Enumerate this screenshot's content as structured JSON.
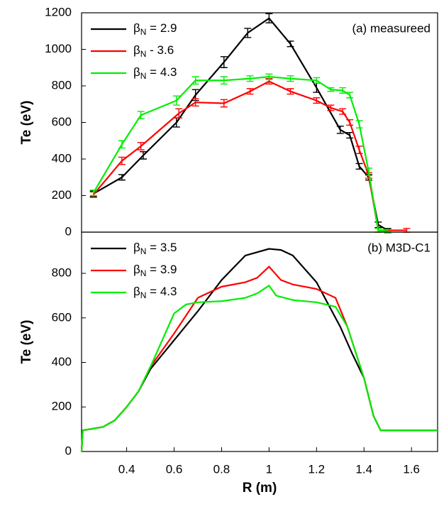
{
  "chart_data": [
    {
      "type": "line",
      "title": "(a) measureed",
      "y_label": "Te (eV)",
      "xlim": [
        0.21,
        1.71
      ],
      "ylim": [
        0,
        1200
      ],
      "yticks": [
        0,
        200,
        400,
        600,
        800,
        1000,
        1200
      ],
      "series": [
        {
          "name": "βN = 2.9",
          "color": "#000000",
          "x": [
            0.26,
            0.38,
            0.47,
            0.61,
            0.69,
            0.81,
            0.91,
            1.0,
            1.09,
            1.2,
            1.3,
            1.34,
            1.38,
            1.42,
            1.46,
            1.5
          ],
          "values": [
            210,
            300,
            420,
            600,
            750,
            930,
            1090,
            1170,
            1030,
            790,
            560,
            530,
            360,
            300,
            40,
            10
          ],
          "errors": [
            15,
            15,
            20,
            25,
            30,
            30,
            25,
            25,
            15,
            25,
            20,
            15,
            15,
            15,
            15,
            10
          ]
        },
        {
          "name": "βN - 3.6",
          "color": "#ff0000",
          "x": [
            0.26,
            0.38,
            0.46,
            0.62,
            0.69,
            0.81,
            0.92,
            1.0,
            1.09,
            1.2,
            1.26,
            1.31,
            1.34,
            1.38,
            1.42,
            1.46,
            1.58
          ],
          "values": [
            205,
            390,
            470,
            650,
            710,
            705,
            770,
            825,
            770,
            720,
            680,
            660,
            600,
            450,
            310,
            10,
            10
          ],
          "errors": [
            15,
            20,
            20,
            25,
            20,
            20,
            15,
            15,
            15,
            15,
            15,
            15,
            15,
            20,
            15,
            10,
            10
          ]
        },
        {
          "name": "βN = 4.3",
          "color": "#00ee00",
          "x": [
            0.26,
            0.38,
            0.46,
            0.61,
            0.69,
            0.81,
            0.92,
            1.0,
            1.09,
            1.2,
            1.26,
            1.31,
            1.34,
            1.38,
            1.42,
            1.46,
            1.5
          ],
          "values": [
            215,
            480,
            640,
            720,
            830,
            830,
            840,
            850,
            840,
            830,
            780,
            775,
            750,
            590,
            330,
            10,
            5
          ],
          "errors": [
            15,
            20,
            20,
            25,
            20,
            20,
            15,
            15,
            15,
            15,
            10,
            15,
            15,
            20,
            20,
            10,
            10
          ]
        }
      ]
    },
    {
      "type": "line",
      "title": "(b) M3D-C1",
      "y_label": "Te (eV)",
      "x_label": "R (m)",
      "xlim": [
        0.21,
        1.71
      ],
      "ylim": [
        0,
        985
      ],
      "xticks": [
        0.4,
        0.6,
        0.8,
        1.0,
        1.2,
        1.4,
        1.6
      ],
      "yticks": [
        0,
        200,
        400,
        600,
        800
      ],
      "series": [
        {
          "name": "βN = 3.5",
          "color": "#000000",
          "x": [
            0.21,
            0.215,
            0.3,
            0.35,
            0.4,
            0.45,
            0.5,
            0.6,
            0.7,
            0.8,
            0.9,
            1.0,
            1.05,
            1.1,
            1.2,
            1.3,
            1.35,
            1.4,
            1.44,
            1.47,
            1.71
          ],
          "values": [
            0,
            95,
            110,
            140,
            200,
            270,
            370,
            500,
            630,
            770,
            880,
            910,
            905,
            880,
            760,
            560,
            440,
            330,
            160,
            95,
            95
          ]
        },
        {
          "name": "βN = 3.9",
          "color": "#ff0000",
          "x": [
            0.21,
            0.215,
            0.3,
            0.35,
            0.4,
            0.45,
            0.5,
            0.6,
            0.7,
            0.8,
            0.9,
            0.95,
            1.0,
            1.05,
            1.1,
            1.2,
            1.28,
            1.33,
            1.4,
            1.44,
            1.47,
            1.71
          ],
          "values": [
            0,
            95,
            110,
            140,
            200,
            270,
            380,
            530,
            690,
            740,
            760,
            780,
            830,
            770,
            750,
            730,
            690,
            560,
            330,
            160,
            95,
            95
          ]
        },
        {
          "name": "βN = 4.3",
          "color": "#00ee00",
          "x": [
            0.21,
            0.215,
            0.3,
            0.35,
            0.4,
            0.45,
            0.5,
            0.6,
            0.65,
            0.7,
            0.8,
            0.9,
            0.95,
            1.0,
            1.03,
            1.1,
            1.2,
            1.28,
            1.33,
            1.4,
            1.44,
            1.47,
            1.71
          ],
          "values": [
            0,
            95,
            110,
            140,
            200,
            270,
            380,
            620,
            660,
            670,
            675,
            690,
            710,
            745,
            700,
            680,
            670,
            650,
            560,
            330,
            160,
            95,
            95
          ]
        }
      ]
    }
  ]
}
